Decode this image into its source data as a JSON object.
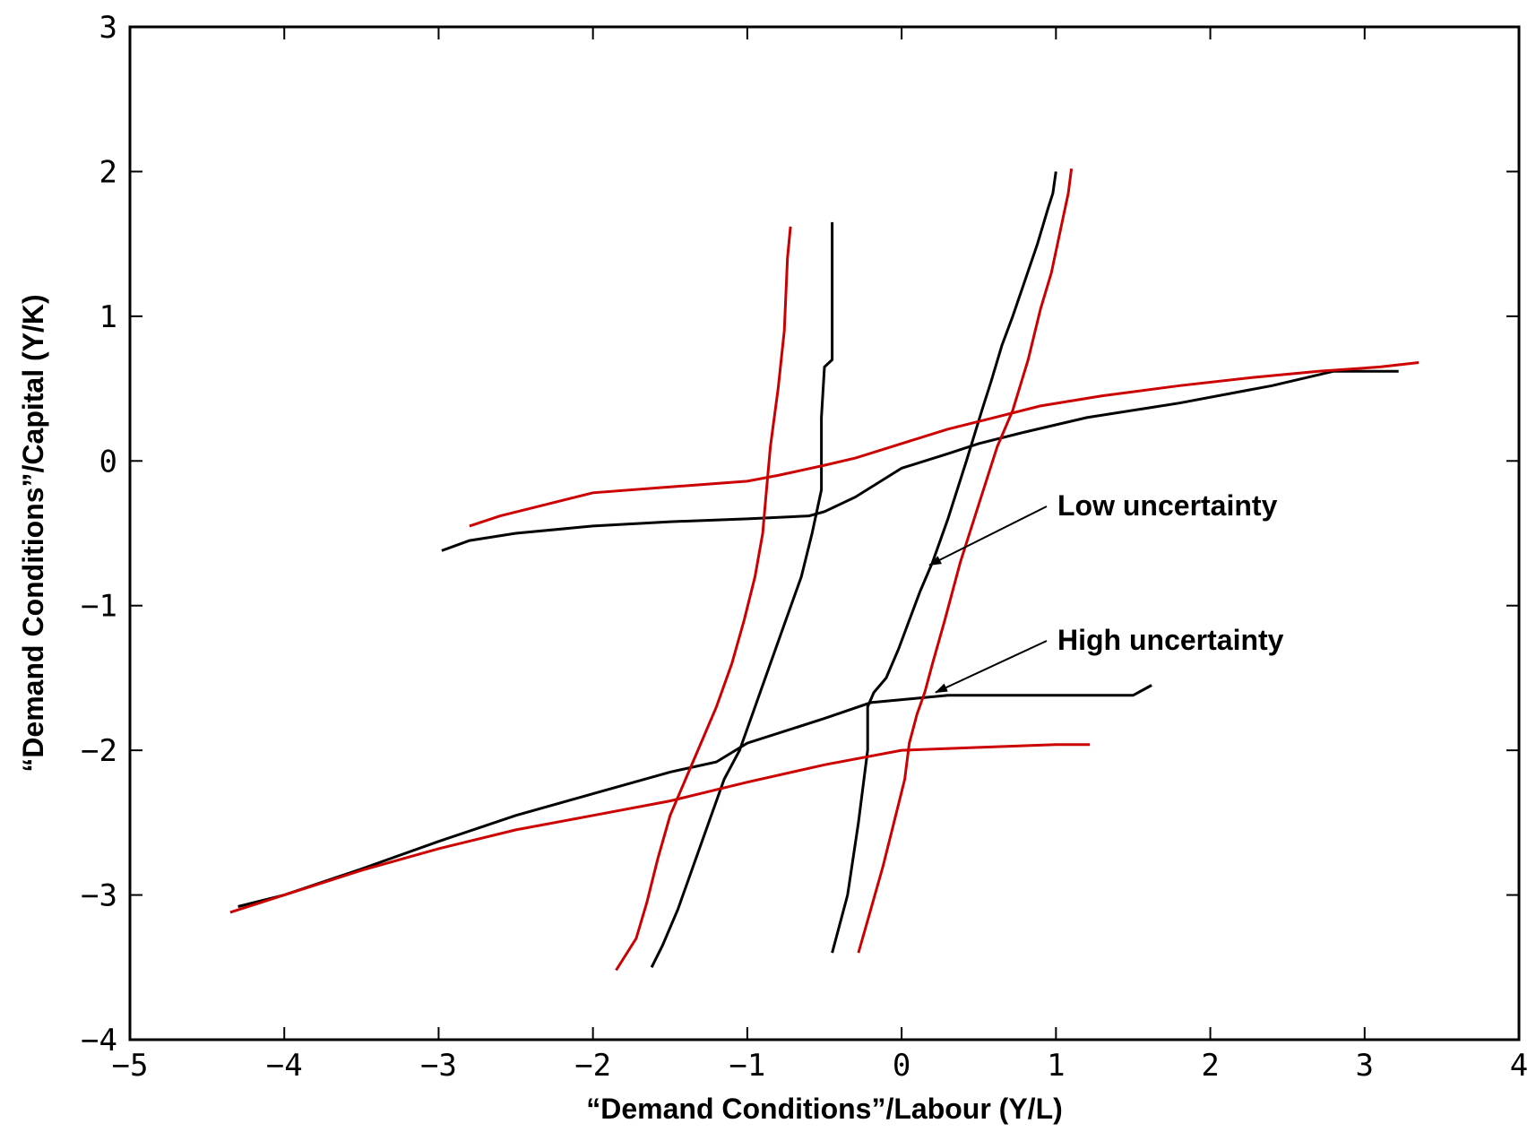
{
  "chart_data": {
    "type": "line",
    "title": "",
    "xlabel": "“Demand Conditions”/Labour (Y/L)",
    "ylabel": "“Demand Conditions”/Capital (Y/K)",
    "xlim": [
      -5,
      4
    ],
    "ylim": [
      -4,
      3
    ],
    "xticks": [
      -5,
      -4,
      -3,
      -2,
      -1,
      0,
      1,
      2,
      3,
      4
    ],
    "yticks": [
      -4,
      -3,
      -2,
      -1,
      0,
      1,
      2,
      3
    ],
    "grid": false,
    "colors": {
      "low": "#000000",
      "high": "#cc0000"
    },
    "series": [
      {
        "group": "low",
        "x": [
          -0.45,
          -0.45,
          -0.5,
          -0.52,
          -0.52,
          -0.58,
          -0.65,
          -0.75,
          -0.85,
          -0.95,
          -1.05,
          -1.15,
          -1.25,
          -1.35,
          -1.45,
          -1.55,
          -1.62
        ],
        "y": [
          1.65,
          0.7,
          0.65,
          0.3,
          -0.2,
          -0.5,
          -0.8,
          -1.1,
          -1.4,
          -1.7,
          -2.0,
          -2.2,
          -2.5,
          -2.8,
          -3.1,
          -3.35,
          -3.5
        ]
      },
      {
        "group": "low",
        "x": [
          1.0,
          0.98,
          0.95,
          0.88,
          0.8,
          0.72,
          0.65,
          0.58,
          0.52,
          0.42,
          0.3,
          0.2,
          0.12,
          0.05,
          -0.02,
          -0.1,
          -0.18,
          -0.22,
          -0.22,
          -0.28,
          -0.35,
          -0.4,
          -0.45
        ],
        "y": [
          2.0,
          1.85,
          1.75,
          1.5,
          1.25,
          1.0,
          0.8,
          0.55,
          0.35,
          0.0,
          -0.4,
          -0.7,
          -0.9,
          -1.1,
          -1.3,
          -1.5,
          -1.6,
          -1.7,
          -2.0,
          -2.5,
          -3.0,
          -3.2,
          -3.4
        ]
      },
      {
        "group": "low",
        "x": [
          -2.98,
          -2.8,
          -2.5,
          -2.0,
          -1.5,
          -1.0,
          -0.6,
          -0.5,
          -0.3,
          0.0,
          0.3,
          0.5,
          0.8,
          1.2,
          1.8,
          2.4,
          2.8,
          3.22
        ],
        "y": [
          -0.62,
          -0.55,
          -0.5,
          -0.45,
          -0.42,
          -0.4,
          -0.38,
          -0.35,
          -0.25,
          -0.05,
          0.05,
          0.12,
          0.2,
          0.3,
          0.4,
          0.52,
          0.62,
          0.62
        ]
      },
      {
        "group": "low",
        "x": [
          -4.3,
          -4.0,
          -3.5,
          -3.0,
          -2.5,
          -2.0,
          -1.5,
          -1.2,
          -1.0,
          -0.5,
          -0.2,
          0.3,
          1.0,
          1.5,
          1.62
        ],
        "y": [
          -3.08,
          -3.0,
          -2.82,
          -2.63,
          -2.45,
          -2.3,
          -2.15,
          -2.08,
          -1.95,
          -1.78,
          -1.67,
          -1.62,
          -1.62,
          -1.62,
          -1.55
        ]
      },
      {
        "group": "high",
        "x": [
          -0.72,
          -0.74,
          -0.76,
          -0.8,
          -0.85,
          -0.88,
          -0.9,
          -0.95,
          -1.02,
          -1.1,
          -1.2,
          -1.3,
          -1.4,
          -1.5,
          -1.58,
          -1.65,
          -1.72,
          -1.85
        ],
        "y": [
          1.62,
          1.4,
          0.9,
          0.5,
          0.1,
          -0.25,
          -0.5,
          -0.8,
          -1.1,
          -1.4,
          -1.7,
          -1.95,
          -2.2,
          -2.45,
          -2.75,
          -3.05,
          -3.3,
          -3.52
        ]
      },
      {
        "group": "high",
        "x": [
          1.1,
          1.08,
          1.05,
          0.97,
          0.9,
          0.82,
          0.72,
          0.62,
          0.5,
          0.38,
          0.28,
          0.2,
          0.15,
          0.1,
          0.05,
          0.02,
          -0.05,
          -0.12,
          -0.2,
          -0.28
        ],
        "y": [
          2.02,
          1.85,
          1.7,
          1.3,
          1.05,
          0.7,
          0.35,
          0.1,
          -0.3,
          -0.7,
          -1.1,
          -1.4,
          -1.6,
          -1.75,
          -1.95,
          -2.2,
          -2.5,
          -2.8,
          -3.1,
          -3.4
        ]
      },
      {
        "group": "high",
        "x": [
          -2.8,
          -2.6,
          -2.3,
          -2.0,
          -1.5,
          -1.0,
          -0.8,
          -0.5,
          -0.3,
          0.0,
          0.3,
          0.6,
          0.9,
          1.3,
          1.8,
          2.3,
          2.7,
          3.1,
          3.35
        ],
        "y": [
          -0.45,
          -0.38,
          -0.3,
          -0.22,
          -0.18,
          -0.14,
          -0.1,
          -0.03,
          0.02,
          0.12,
          0.22,
          0.3,
          0.38,
          0.45,
          0.52,
          0.58,
          0.62,
          0.65,
          0.68
        ]
      },
      {
        "group": "high",
        "x": [
          -4.35,
          -4.0,
          -3.5,
          -3.0,
          -2.5,
          -2.0,
          -1.5,
          -1.0,
          -0.5,
          0.0,
          0.5,
          1.0,
          1.22
        ],
        "y": [
          -3.12,
          -3.0,
          -2.83,
          -2.68,
          -2.55,
          -2.45,
          -2.35,
          -2.22,
          -2.1,
          -2.0,
          -1.98,
          -1.96,
          -1.96
        ]
      }
    ],
    "annotations": [
      {
        "text": "Low uncertainty",
        "target": [
          0.18,
          -0.72
        ]
      },
      {
        "text": "High uncertainty",
        "target": [
          0.22,
          -1.6
        ]
      }
    ]
  }
}
